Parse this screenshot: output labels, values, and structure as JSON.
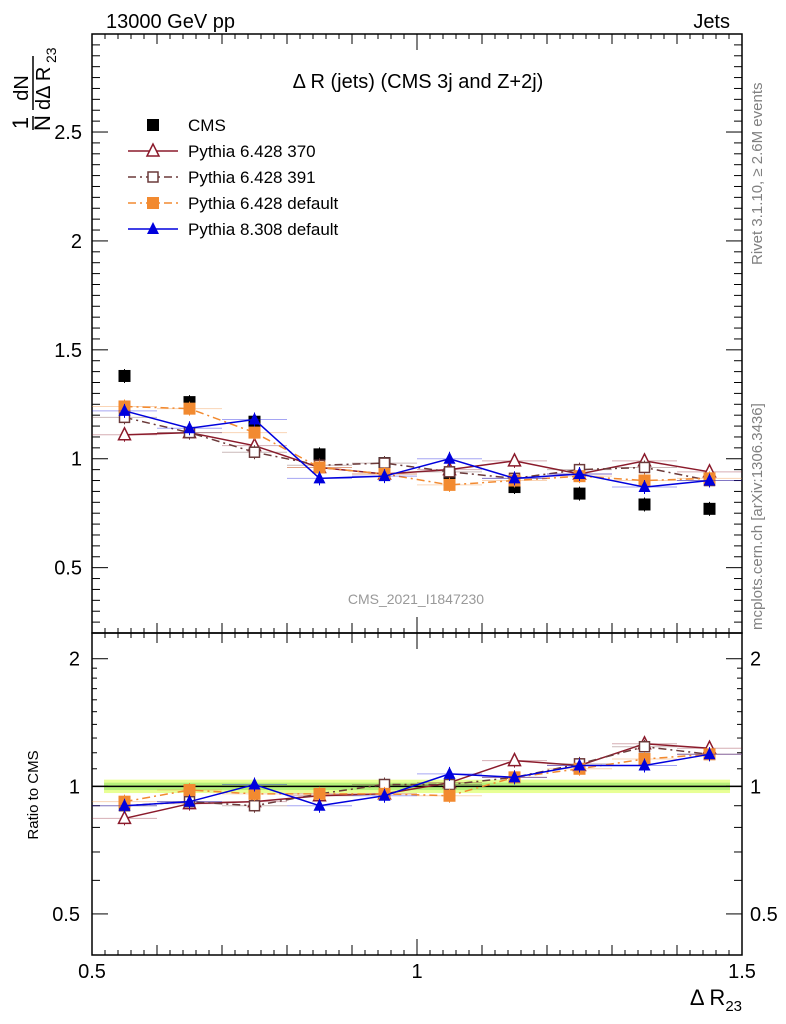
{
  "header": {
    "left": "13000 GeV pp",
    "right": "Jets"
  },
  "side_labels": {
    "rivet": "Rivet 3.1.10, ≥ 2.6M events",
    "mcplots": "mcplots.cern.ch [arXiv:1306.3436]"
  },
  "analysis_id": "CMS_2021_I1847230",
  "chart_data": [
    {
      "type": "scatter",
      "title": "Δ R (jets) (CMS 3j and Z+2j)",
      "ylabel": "1/N dN/dΔ R23",
      "xlabel": "Δ R23",
      "xlim": [
        0.5,
        1.5
      ],
      "ylim": [
        0.2,
        2.95
      ],
      "yticks": [
        "0.5",
        "1",
        "1.5",
        "2",
        "2.5"
      ],
      "ytick_values": [
        0.5,
        1,
        1.5,
        2,
        2.5
      ],
      "legend_position": "top-left",
      "x": [
        0.55,
        0.65,
        0.75,
        0.85,
        0.95,
        1.05,
        1.15,
        1.25,
        1.35,
        1.45
      ],
      "series": [
        {
          "name": "CMS",
          "color": "#000000",
          "marker": "square",
          "line": "none",
          "values": [
            1.38,
            1.26,
            1.17,
            1.02,
            0.98,
            0.93,
            0.87,
            0.84,
            0.79,
            0.77
          ]
        },
        {
          "name": "Pythia 6.428 370",
          "color": "#8b1a2b",
          "marker": "triangle-open",
          "line": "solid",
          "values": [
            1.11,
            1.12,
            1.06,
            0.96,
            0.93,
            0.95,
            0.99,
            0.93,
            0.99,
            0.94
          ]
        },
        {
          "name": "Pythia 6.428 391",
          "color": "#6b3a3a",
          "marker": "square-open",
          "line": "dashdot",
          "values": [
            1.19,
            1.12,
            1.03,
            0.97,
            0.98,
            0.94,
            0.91,
            0.95,
            0.96,
            0.9
          ]
        },
        {
          "name": "Pythia 6.428 default",
          "color": "#f28a30",
          "marker": "square",
          "line": "dashdot",
          "values": [
            1.24,
            1.23,
            1.12,
            0.96,
            0.93,
            0.88,
            0.9,
            0.92,
            0.9,
            0.91
          ]
        },
        {
          "name": "Pythia 8.308 default",
          "color": "#0000dd",
          "marker": "triangle",
          "line": "solid",
          "values": [
            1.22,
            1.14,
            1.18,
            0.91,
            0.92,
            1.0,
            0.91,
            0.93,
            0.87,
            0.9
          ]
        }
      ]
    },
    {
      "type": "scatter",
      "ylabel": "Ratio to CMS",
      "xlabel": "Δ R23",
      "xlim": [
        0.5,
        1.5
      ],
      "ylim": [
        0.4,
        2.3
      ],
      "yscale": "log",
      "yticks": [
        "0.5",
        "1",
        "2"
      ],
      "ytick_values": [
        0.5,
        1,
        2
      ],
      "xticks": [
        "0.5",
        "1",
        "1.5"
      ],
      "xtick_values": [
        0.5,
        1,
        1.5
      ],
      "reference_line": 1,
      "x": [
        0.55,
        0.65,
        0.75,
        0.85,
        0.95,
        1.05,
        1.15,
        1.25,
        1.35,
        1.45
      ],
      "series": [
        {
          "name": "Pythia 6.428 370",
          "color": "#8b1a2b",
          "marker": "triangle-open",
          "line": "solid",
          "values": [
            0.84,
            0.91,
            0.92,
            0.95,
            0.96,
            1.02,
            1.15,
            1.12,
            1.26,
            1.23
          ]
        },
        {
          "name": "Pythia 6.428 391",
          "color": "#6b3a3a",
          "marker": "square-open",
          "line": "dashdot",
          "values": [
            0.9,
            0.92,
            0.9,
            0.96,
            1.01,
            1.01,
            1.05,
            1.13,
            1.24,
            1.19
          ]
        },
        {
          "name": "Pythia 6.428 default",
          "color": "#f28a30",
          "marker": "square",
          "line": "dashdot",
          "values": [
            0.92,
            0.98,
            0.96,
            0.96,
            0.96,
            0.95,
            1.05,
            1.1,
            1.16,
            1.19
          ]
        },
        {
          "name": "Pythia 8.308 default",
          "color": "#0000dd",
          "marker": "triangle",
          "line": "solid",
          "values": [
            0.9,
            0.92,
            1.01,
            0.9,
            0.95,
            1.07,
            1.05,
            1.12,
            1.12,
            1.19
          ]
        }
      ]
    }
  ]
}
